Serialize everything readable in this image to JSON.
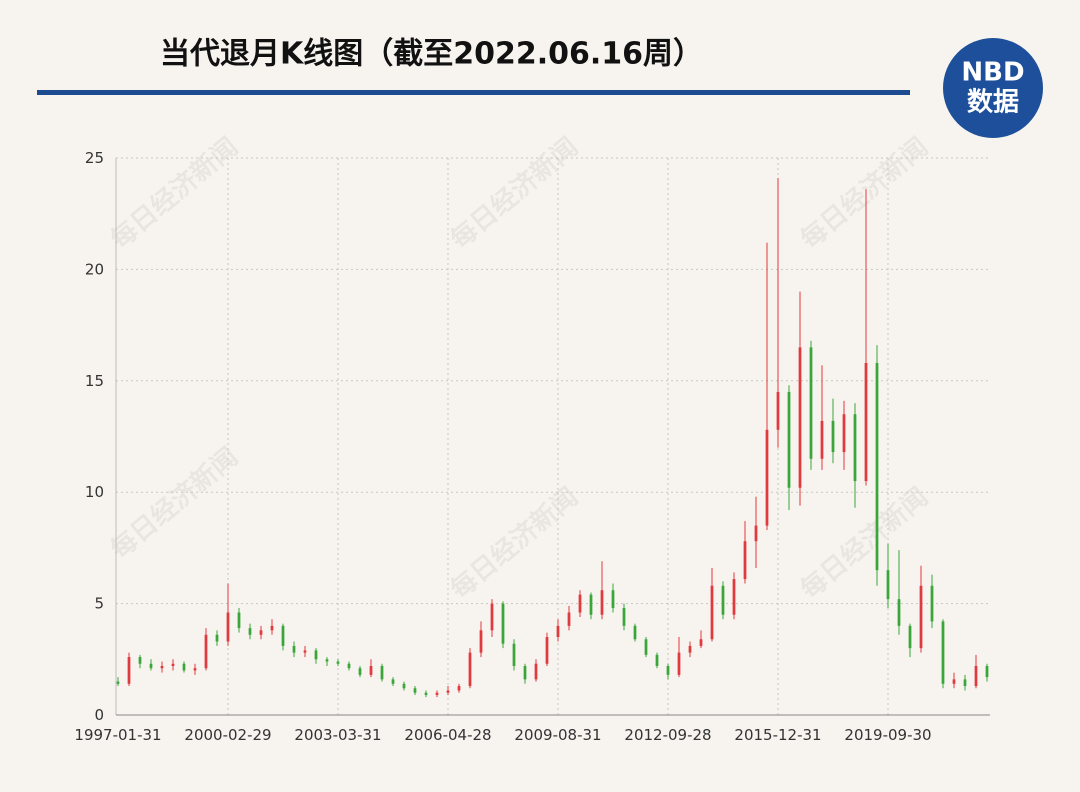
{
  "title": "当代退月K线图（截至2022.06.16周）",
  "logo": {
    "brand": "NBD",
    "sub": "数据"
  },
  "watermark": "每日经济新闻",
  "chart_data": {
    "type": "candlestick",
    "up_color": "#e0393e",
    "down_color": "#3aa63a",
    "grid": true,
    "categories": [
      "1997-01-31",
      null,
      null,
      null,
      null,
      null,
      null,
      null,
      null,
      null,
      "2000-02-29",
      null,
      null,
      null,
      null,
      null,
      null,
      null,
      null,
      null,
      "2003-03-31",
      null,
      null,
      null,
      null,
      null,
      null,
      null,
      null,
      null,
      "2006-04-28",
      null,
      null,
      null,
      null,
      null,
      null,
      null,
      null,
      null,
      "2009-08-31",
      null,
      null,
      null,
      null,
      null,
      null,
      null,
      null,
      null,
      "2012-09-28",
      null,
      null,
      null,
      null,
      null,
      null,
      null,
      null,
      null,
      "2015-12-31",
      null,
      null,
      null,
      null,
      null,
      null,
      null,
      null,
      null,
      "2019-09-30",
      null,
      null,
      null,
      null,
      null,
      null,
      null,
      null,
      null
    ],
    "open": [
      1.5,
      1.4,
      2.6,
      2.3,
      2.1,
      2.2,
      2.3,
      2.0,
      2.1,
      3.6,
      3.3,
      4.6,
      3.9,
      3.6,
      3.8,
      4.0,
      3.1,
      2.8,
      2.9,
      2.5,
      2.4,
      2.3,
      2.1,
      1.8,
      2.2,
      1.6,
      1.4,
      1.2,
      1.0,
      0.9,
      1.0,
      1.1,
      1.3,
      2.8,
      3.8,
      5.0,
      3.2,
      2.2,
      1.6,
      2.3,
      3.5,
      4.0,
      4.6,
      5.4,
      4.5,
      5.6,
      4.8,
      4.0,
      3.4,
      2.7,
      2.2,
      1.8,
      2.8,
      3.1,
      3.4,
      5.8,
      4.5,
      6.1,
      7.8,
      8.5,
      12.8,
      14.5,
      10.2,
      16.5,
      11.5,
      13.2,
      11.8,
      13.5,
      10.5,
      15.8,
      6.5,
      5.2,
      4.0,
      3.0,
      5.8,
      4.2,
      1.4,
      1.6,
      1.3,
      2.2
    ],
    "high": [
      1.7,
      2.8,
      2.7,
      2.5,
      2.4,
      2.5,
      2.4,
      2.3,
      3.9,
      3.8,
      5.9,
      4.8,
      4.1,
      4.0,
      4.3,
      4.1,
      3.3,
      3.1,
      3.0,
      2.6,
      2.5,
      2.4,
      2.2,
      2.5,
      2.3,
      1.7,
      1.5,
      1.3,
      1.1,
      1.1,
      1.3,
      1.4,
      3.0,
      4.2,
      5.2,
      5.1,
      3.4,
      2.3,
      2.5,
      3.7,
      4.3,
      4.9,
      5.6,
      5.5,
      6.9,
      5.9,
      5.0,
      4.1,
      3.5,
      2.8,
      2.3,
      3.5,
      3.3,
      3.8,
      6.6,
      6.0,
      6.4,
      8.7,
      9.8,
      21.2,
      24.1,
      14.8,
      19.0,
      16.8,
      15.7,
      14.2,
      14.1,
      14.0,
      23.6,
      16.6,
      7.7,
      7.4,
      4.1,
      6.7,
      6.3,
      4.3,
      1.9,
      1.8,
      2.7,
      2.3
    ],
    "low": [
      1.3,
      1.3,
      2.1,
      2.0,
      1.9,
      2.0,
      1.9,
      1.8,
      2.0,
      3.1,
      3.1,
      3.7,
      3.4,
      3.4,
      3.6,
      2.9,
      2.6,
      2.6,
      2.3,
      2.2,
      2.2,
      2.0,
      1.7,
      1.7,
      1.5,
      1.3,
      1.1,
      0.9,
      0.8,
      0.8,
      0.9,
      1.0,
      1.2,
      2.6,
      3.5,
      3.0,
      2.0,
      1.4,
      1.5,
      2.2,
      3.3,
      3.8,
      4.4,
      4.3,
      4.3,
      4.6,
      3.8,
      3.3,
      2.6,
      2.1,
      1.6,
      1.7,
      2.6,
      3.0,
      3.3,
      4.3,
      4.3,
      5.9,
      6.6,
      8.3,
      12.0,
      9.2,
      9.4,
      11.0,
      11.0,
      11.3,
      11.0,
      9.3,
      10.3,
      5.8,
      4.8,
      3.6,
      2.6,
      2.8,
      3.9,
      1.2,
      1.2,
      1.1,
      1.2,
      1.5
    ],
    "close": [
      1.4,
      2.6,
      2.3,
      2.1,
      2.2,
      2.3,
      2.0,
      2.1,
      3.6,
      3.3,
      4.6,
      3.9,
      3.6,
      3.8,
      4.0,
      3.1,
      2.8,
      2.9,
      2.5,
      2.4,
      2.3,
      2.1,
      1.8,
      2.2,
      1.6,
      1.4,
      1.2,
      1.0,
      0.9,
      1.0,
      1.1,
      1.3,
      2.8,
      3.8,
      5.0,
      3.2,
      2.2,
      1.6,
      2.3,
      3.5,
      4.0,
      4.6,
      5.4,
      4.5,
      5.6,
      4.8,
      4.0,
      3.4,
      2.7,
      2.2,
      1.8,
      2.8,
      3.1,
      3.4,
      5.8,
      4.5,
      6.1,
      7.8,
      8.5,
      12.8,
      14.5,
      10.2,
      16.5,
      11.5,
      13.2,
      11.8,
      13.5,
      10.5,
      15.8,
      6.5,
      5.2,
      4.0,
      3.0,
      5.8,
      4.2,
      1.4,
      1.6,
      1.3,
      2.2,
      1.7
    ],
    "ylim": [
      0,
      25
    ],
    "yticks": [
      0,
      5,
      10,
      15,
      20,
      25
    ]
  }
}
